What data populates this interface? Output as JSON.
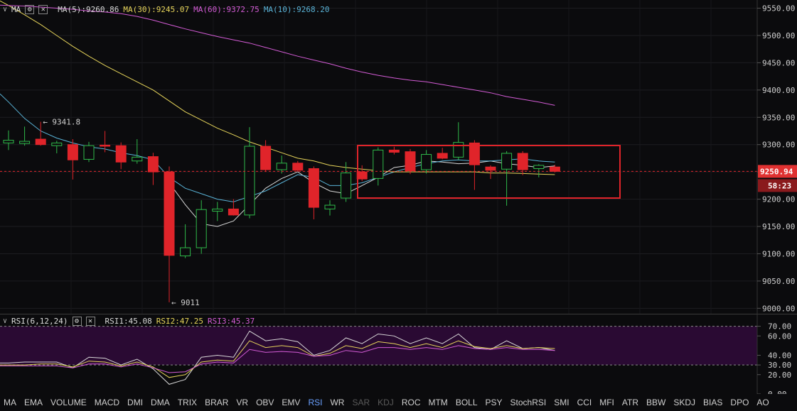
{
  "main_indicator": {
    "name": "MA",
    "items": [
      {
        "label": "MA(5):9260.86",
        "color": "#d8d8d8"
      },
      {
        "label": "MA(30):9245.07",
        "color": "#e6d45a"
      },
      {
        "label": "MA(60):9372.75",
        "color": "#d45cd6"
      },
      {
        "label": "MA(10):9268.20",
        "color": "#5ab4d8"
      }
    ]
  },
  "sub_indicator": {
    "name": "RSI(6,12,24)",
    "items": [
      {
        "label": "RSI1:45.08",
        "color": "#d8d8d8"
      },
      {
        "label": "RSI2:47.25",
        "color": "#e6d45a"
      },
      {
        "label": "RSI3:45.37",
        "color": "#d45cd6"
      }
    ]
  },
  "price_axis": {
    "ticks": [
      "9550.00",
      "9500.00",
      "9450.00",
      "9400.00",
      "9350.00",
      "9300.00",
      "9250.00",
      "9200.00",
      "9150.00",
      "9100.00",
      "9050.00",
      "9000.00"
    ],
    "current_price": "9250.94",
    "countdown": "58:23",
    "current_color": "#e03131"
  },
  "rsi_axis": {
    "ticks": [
      "70.00",
      "60.00",
      "40.00",
      "30.00",
      "20.00",
      "0.00"
    ]
  },
  "annotations": {
    "high": "9341.8",
    "low": "9011"
  },
  "tabs": [
    {
      "label": "MA",
      "state": "normal"
    },
    {
      "label": "EMA",
      "state": "normal"
    },
    {
      "label": "VOLUME",
      "state": "normal"
    },
    {
      "label": "MACD",
      "state": "normal"
    },
    {
      "label": "DMI",
      "state": "normal"
    },
    {
      "label": "DMA",
      "state": "normal"
    },
    {
      "label": "TRIX",
      "state": "normal"
    },
    {
      "label": "BRAR",
      "state": "normal"
    },
    {
      "label": "VR",
      "state": "normal"
    },
    {
      "label": "OBV",
      "state": "normal"
    },
    {
      "label": "EMV",
      "state": "normal"
    },
    {
      "label": "RSI",
      "state": "active"
    },
    {
      "label": "WR",
      "state": "normal"
    },
    {
      "label": "SAR",
      "state": "disabled"
    },
    {
      "label": "KDJ",
      "state": "disabled"
    },
    {
      "label": "ROC",
      "state": "normal"
    },
    {
      "label": "MTM",
      "state": "normal"
    },
    {
      "label": "BOLL",
      "state": "normal"
    },
    {
      "label": "PSY",
      "state": "normal"
    },
    {
      "label": "StochRSI",
      "state": "normal"
    },
    {
      "label": "SMI",
      "state": "normal"
    },
    {
      "label": "CCI",
      "state": "normal"
    },
    {
      "label": "MFI",
      "state": "normal"
    },
    {
      "label": "ATR",
      "state": "normal"
    },
    {
      "label": "BBW",
      "state": "normal"
    },
    {
      "label": "SKDJ",
      "state": "normal"
    },
    {
      "label": "BIAS",
      "state": "normal"
    },
    {
      "label": "DPO",
      "state": "normal"
    },
    {
      "label": "AO",
      "state": "normal"
    }
  ],
  "chart_data": {
    "type": "candlestick",
    "ylim": [
      8990,
      9565
    ],
    "grid": true,
    "colors": {
      "up": "#2fb94a",
      "down": "#e0242a"
    },
    "candles": [
      {
        "o": 9303,
        "h": 9326,
        "l": 9290,
        "c": 9308
      },
      {
        "o": 9302,
        "h": 9333,
        "l": 9298,
        "c": 9306
      },
      {
        "o": 9310,
        "h": 9341.8,
        "l": 9298,
        "c": 9300
      },
      {
        "o": 9298,
        "h": 9307,
        "l": 9284,
        "c": 9303
      },
      {
        "o": 9300,
        "h": 9310,
        "l": 9236,
        "c": 9272
      },
      {
        "o": 9273,
        "h": 9305,
        "l": 9268,
        "c": 9298
      },
      {
        "o": 9299,
        "h": 9325,
        "l": 9286,
        "c": 9297
      },
      {
        "o": 9298,
        "h": 9304,
        "l": 9255,
        "c": 9268
      },
      {
        "o": 9270,
        "h": 9310,
        "l": 9265,
        "c": 9277
      },
      {
        "o": 9278,
        "h": 9285,
        "l": 9226,
        "c": 9250
      },
      {
        "o": 9250,
        "h": 9260,
        "l": 9011,
        "c": 9097
      },
      {
        "o": 9096,
        "h": 9154,
        "l": 9092,
        "c": 9111
      },
      {
        "o": 9111,
        "h": 9198,
        "l": 9100,
        "c": 9181
      },
      {
        "o": 9178,
        "h": 9195,
        "l": 9160,
        "c": 9182
      },
      {
        "o": 9182,
        "h": 9200,
        "l": 9170,
        "c": 9171
      },
      {
        "o": 9171,
        "h": 9332,
        "l": 9165,
        "c": 9297
      },
      {
        "o": 9297,
        "h": 9308,
        "l": 9250,
        "c": 9254
      },
      {
        "o": 9254,
        "h": 9280,
        "l": 9247,
        "c": 9266
      },
      {
        "o": 9266,
        "h": 9270,
        "l": 9250,
        "c": 9253
      },
      {
        "o": 9256,
        "h": 9260,
        "l": 9163,
        "c": 9185
      },
      {
        "o": 9182,
        "h": 9198,
        "l": 9170,
        "c": 9189
      },
      {
        "o": 9202,
        "h": 9268,
        "l": 9195,
        "c": 9248
      },
      {
        "o": 9250,
        "h": 9262,
        "l": 9233,
        "c": 9237
      },
      {
        "o": 9238,
        "h": 9295,
        "l": 9225,
        "c": 9290
      },
      {
        "o": 9290,
        "h": 9296,
        "l": 9282,
        "c": 9286
      },
      {
        "o": 9287,
        "h": 9292,
        "l": 9246,
        "c": 9252
      },
      {
        "o": 9254,
        "h": 9290,
        "l": 9247,
        "c": 9282
      },
      {
        "o": 9284,
        "h": 9294,
        "l": 9273,
        "c": 9275
      },
      {
        "o": 9277,
        "h": 9341,
        "l": 9272,
        "c": 9304
      },
      {
        "o": 9303,
        "h": 9308,
        "l": 9217,
        "c": 9263
      },
      {
        "o": 9259,
        "h": 9262,
        "l": 9237,
        "c": 9253
      },
      {
        "o": 9255,
        "h": 9288,
        "l": 9188,
        "c": 9284
      },
      {
        "o": 9284,
        "h": 9288,
        "l": 9244,
        "c": 9254
      },
      {
        "o": 9256,
        "h": 9264,
        "l": 9240,
        "c": 9262
      },
      {
        "o": 9259,
        "h": 9263,
        "l": 9249,
        "c": 9251
      }
    ],
    "ma": [
      {
        "name": "MA(5)",
        "color": "#d8d8d8",
        "start": 10,
        "values": [
          9230,
          9190,
          9155,
          9150,
          9160,
          9190,
          9220,
          9238,
          9250,
          9230,
          9215,
          9210,
          9225,
          9240,
          9258,
          9262,
          9270,
          9268,
          9265,
          9266,
          9270,
          9265,
          9262,
          9258,
          9261
        ]
      },
      {
        "name": "MA(10)",
        "color": "#5ab4d8",
        "start": 0,
        "values": [
          9378,
          9348,
          9325,
          9312,
          9303,
          9296,
          9292,
          9285,
          9280,
          9272,
          9240,
          9220,
          9210,
          9200,
          9195,
          9205,
          9215,
          9230,
          9245,
          9240,
          9225,
          9225,
          9230,
          9240,
          9250,
          9258,
          9265,
          9270,
          9272,
          9270,
          9270,
          9272,
          9274,
          9270,
          9268
        ]
      },
      {
        "name": "MA(30)",
        "color": "#e6d45a",
        "start": 0,
        "values": [
          9555,
          9538,
          9520,
          9500,
          9480,
          9462,
          9445,
          9430,
          9415,
          9400,
          9380,
          9360,
          9345,
          9330,
          9318,
          9305,
          9295,
          9285,
          9275,
          9270,
          9262,
          9258,
          9255,
          9252,
          9250,
          9250,
          9250,
          9250,
          9250,
          9250,
          9248,
          9248,
          9247,
          9246,
          9245
        ]
      },
      {
        "name": "MA(60)",
        "color": "#d45cd6",
        "start": 0,
        "values": [
          9555,
          9554,
          9552,
          9550,
          9548,
          9545,
          9543,
          9540,
          9535,
          9528,
          9520,
          9512,
          9505,
          9498,
          9492,
          9486,
          9478,
          9470,
          9462,
          9455,
          9448,
          9440,
          9433,
          9427,
          9422,
          9418,
          9415,
          9410,
          9405,
          9400,
          9395,
          9388,
          9383,
          9378,
          9372
        ]
      }
    ],
    "rsi": {
      "ylim": [
        0,
        80
      ],
      "levels": [
        70,
        30
      ],
      "series": [
        {
          "name": "RSI1",
          "color": "#d8d8d8",
          "values": [
            32,
            33,
            33,
            33,
            27,
            38,
            37,
            30,
            36,
            26,
            10,
            15,
            38,
            40,
            38,
            65,
            55,
            57,
            54,
            40,
            45,
            58,
            52,
            62,
            60,
            52,
            58,
            52,
            62,
            48,
            46,
            55,
            47,
            48,
            45
          ]
        },
        {
          "name": "RSI2",
          "color": "#e6d45a",
          "values": [
            30,
            30,
            31,
            31,
            28,
            34,
            33,
            29,
            33,
            28,
            17,
            20,
            33,
            35,
            34,
            55,
            48,
            50,
            48,
            39,
            42,
            50,
            47,
            54,
            52,
            48,
            52,
            48,
            55,
            49,
            47,
            50,
            47,
            48,
            47
          ]
        },
        {
          "name": "RSI3",
          "color": "#d45cd6",
          "values": [
            29,
            29,
            29,
            29,
            27,
            31,
            31,
            28,
            31,
            27,
            22,
            23,
            31,
            33,
            32,
            46,
            43,
            44,
            43,
            39,
            40,
            45,
            43,
            48,
            48,
            46,
            48,
            46,
            50,
            47,
            46,
            48,
            46,
            46,
            45
          ]
        }
      ]
    }
  }
}
